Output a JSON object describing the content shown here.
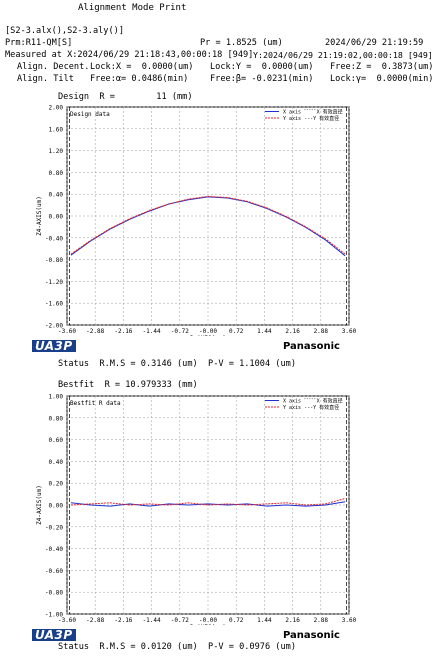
{
  "header": {
    "title": "Alignment Mode Print",
    "files": "[S2-3.alx(),S2-3.aly()]",
    "prm": "Prm:R11-QM[S]",
    "pr": "Pr = 1.8525 (um)",
    "date": "2024/06/29 21:19:59",
    "measured_x": "Measured at X:2024/06/29 21:18:43,00:00:18 [949]",
    "measured_y": "Y:2024/06/29 21:19:02,00:00:18 [949]",
    "decent_label": "Align. Decent.",
    "decent_x": "Lock:X =  0.0000(um)",
    "decent_y": "Lock:Y =  0.0000(um)",
    "decent_z": "Free:Z =  0.3873(um)",
    "tilt_label": "Align. Tilt",
    "tilt_a": "Free:α= 0.0486(min)",
    "tilt_b": "Free:β= -0.0231(min)",
    "tilt_c": "Lock:γ=  0.0000(min)"
  },
  "section1": {
    "heading": "Design  R =        11 (mm)",
    "status": "Status  R.M.S = 0.3146 (um)  P-V = 1.1004 (um)"
  },
  "section2": {
    "heading": "Bestfit  R = 10.979333 (mm)",
    "status": "Status  R.M.S = 0.0120 (um)  P-V = 0.0976 (um)"
  },
  "logos": {
    "left": "UA3P",
    "right": "Panasonic"
  },
  "colors": {
    "x_axis": "#1f2fd0",
    "y_axis": "#e0262d"
  },
  "chart_data": [
    {
      "type": "line",
      "title": "Design data",
      "xlabel": "R-AXIS(mm)",
      "ylabel": "Z4-AXIS(um)",
      "xlim": [
        -3.6,
        3.6
      ],
      "ylim": [
        -2.0,
        2.0
      ],
      "xticks": [
        -3.6,
        -2.88,
        -2.16,
        -1.44,
        -0.72,
        -0.0,
        0.72,
        1.44,
        2.16,
        2.88,
        3.6
      ],
      "xtick_labels": [
        "-3.60",
        "-2.88",
        "-2.16",
        "-1.44",
        "-0.72",
        "-0.00",
        "0.72",
        "1.44",
        "2.16",
        "2.88",
        "3.60"
      ],
      "yticks": [
        2.0,
        1.6,
        1.2,
        0.8,
        0.4,
        0.0,
        -0.4,
        -0.8,
        -1.2,
        -1.6,
        -2.0
      ],
      "ytick_labels": [
        "2.00",
        "1.60",
        "1.20",
        "0.80",
        "0.40",
        "0.00",
        "-0.40",
        "-0.80",
        "-1.20",
        "-1.60",
        "-2.00"
      ],
      "grid": true,
      "legend": "top-right",
      "legend_entries": [
        {
          "name": "X axis",
          "extra": "ﾞﾞﾞﾞﾞX 有效直径"
        },
        {
          "name": "Y axis",
          "extra": "---Y 有效直径"
        }
      ],
      "series": [
        {
          "name": "X axis",
          "x": [
            -3.5,
            -3.0,
            -2.5,
            -2.0,
            -1.5,
            -1.0,
            -0.5,
            0.0,
            0.5,
            1.0,
            1.5,
            2.0,
            2.5,
            3.0,
            3.5
          ],
          "values": [
            -0.72,
            -0.46,
            -0.24,
            -0.06,
            0.09,
            0.22,
            0.3,
            0.35,
            0.33,
            0.26,
            0.14,
            -0.02,
            -0.21,
            -0.44,
            -0.73
          ]
        },
        {
          "name": "Y axis",
          "x": [
            -3.5,
            -3.0,
            -2.5,
            -2.0,
            -1.5,
            -1.0,
            -0.5,
            0.0,
            0.5,
            1.0,
            1.5,
            2.0,
            2.5,
            3.0,
            3.5
          ],
          "values": [
            -0.7,
            -0.45,
            -0.23,
            -0.05,
            0.1,
            0.22,
            0.31,
            0.36,
            0.34,
            0.27,
            0.15,
            -0.01,
            -0.2,
            -0.42,
            -0.7
          ]
        }
      ]
    },
    {
      "type": "line",
      "title": "Bestfit R data",
      "xlabel": "R-AXIS(mm)",
      "ylabel": "Z4-AXIS(um)",
      "xlim": [
        -3.6,
        3.6
      ],
      "ylim": [
        -1.0,
        1.0
      ],
      "xticks": [
        -3.6,
        -2.88,
        -2.16,
        -1.44,
        -0.72,
        -0.0,
        0.72,
        1.44,
        2.16,
        2.88,
        3.6
      ],
      "xtick_labels": [
        "-3.60",
        "-2.88",
        "-2.16",
        "-1.44",
        "-0.72",
        "-0.00",
        "0.72",
        "1.44",
        "2.16",
        "2.88",
        "3.60"
      ],
      "yticks": [
        1.0,
        0.8,
        0.6,
        0.4,
        0.2,
        0.0,
        -0.2,
        -0.4,
        -0.6,
        -0.8,
        -1.0
      ],
      "ytick_labels": [
        "1.00",
        "0.80",
        "0.60",
        "0.40",
        "0.20",
        "0.00",
        "-0.20",
        "-0.40",
        "-0.60",
        "-0.80",
        "-1.00"
      ],
      "grid": true,
      "legend": "top-right",
      "legend_entries": [
        {
          "name": "X axis",
          "extra": "ﾞﾞﾞﾞﾞX 有效直径"
        },
        {
          "name": "Y axis",
          "extra": "---Y 有效直径"
        }
      ],
      "series": [
        {
          "name": "X axis",
          "x": [
            -3.5,
            -3.0,
            -2.5,
            -2.0,
            -1.5,
            -1.0,
            -0.5,
            0.0,
            0.5,
            1.0,
            1.5,
            2.0,
            2.5,
            3.0,
            3.5
          ],
          "values": [
            0.02,
            0.0,
            -0.01,
            0.01,
            -0.01,
            0.01,
            0.0,
            0.01,
            0.0,
            0.01,
            -0.01,
            0.0,
            -0.01,
            0.0,
            0.03
          ]
        },
        {
          "name": "Y axis",
          "x": [
            -3.5,
            -3.0,
            -2.5,
            -2.0,
            -1.5,
            -1.0,
            -0.5,
            0.0,
            0.5,
            1.0,
            1.5,
            2.0,
            2.5,
            3.0,
            3.5
          ],
          "values": [
            0.0,
            0.01,
            0.02,
            0.0,
            0.01,
            0.0,
            0.02,
            0.0,
            0.01,
            0.0,
            0.01,
            0.02,
            0.0,
            0.01,
            0.06
          ]
        }
      ]
    }
  ]
}
